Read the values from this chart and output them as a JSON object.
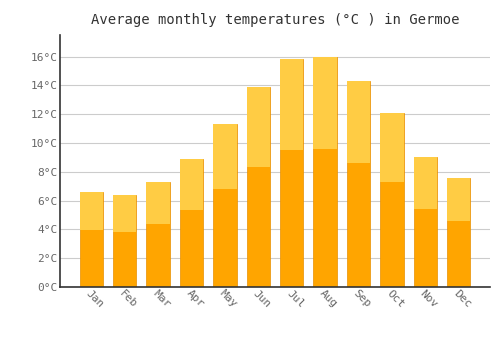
{
  "title": "Average monthly temperatures (°C ) in Germoe",
  "months": [
    "Jan",
    "Feb",
    "Mar",
    "Apr",
    "May",
    "Jun",
    "Jul",
    "Aug",
    "Sep",
    "Oct",
    "Nov",
    "Dec"
  ],
  "temperatures": [
    6.6,
    6.4,
    7.3,
    8.9,
    11.3,
    13.9,
    15.8,
    16.0,
    14.3,
    12.1,
    9.0,
    7.6
  ],
  "bar_color_top": "#FFCC44",
  "bar_color_bottom": "#FFA500",
  "bar_edge_color": "#E89000",
  "background_color": "#FFFFFF",
  "grid_color": "#CCCCCC",
  "ytick_labels": [
    "0°C",
    "2°C",
    "4°C",
    "6°C",
    "8°C",
    "10°C",
    "12°C",
    "14°C",
    "16°C"
  ],
  "ytick_values": [
    0,
    2,
    4,
    6,
    8,
    10,
    12,
    14,
    16
  ],
  "ylim": [
    0,
    17.5
  ],
  "title_fontsize": 10,
  "tick_fontsize": 8,
  "tick_color": "#666666",
  "spine_color": "#333333",
  "bar_width": 0.7
}
